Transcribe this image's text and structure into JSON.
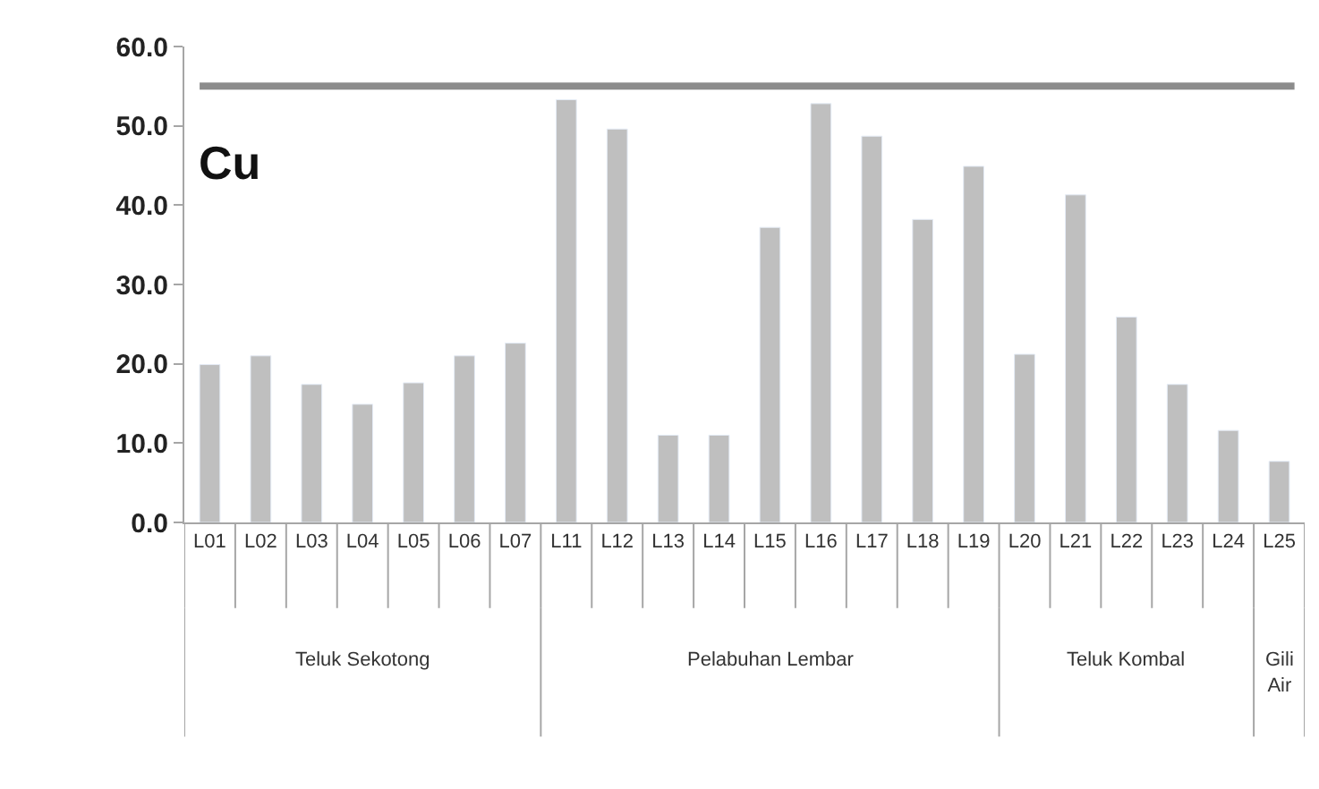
{
  "chart_data": {
    "type": "bar",
    "categories": [
      "L01",
      "L02",
      "L03",
      "L04",
      "L05",
      "L06",
      "L07",
      "L11",
      "L12",
      "L13",
      "L14",
      "L15",
      "L16",
      "L17",
      "L18",
      "L19",
      "L20",
      "L21",
      "L22",
      "L23",
      "L24",
      "L25"
    ],
    "values": [
      19.9,
      21.0,
      17.4,
      14.9,
      17.6,
      21.0,
      22.6,
      53.3,
      49.6,
      11.0,
      11.0,
      37.2,
      52.8,
      48.7,
      38.2,
      44.9,
      21.2,
      41.3,
      25.9,
      17.4,
      11.6,
      7.7
    ],
    "color": "#bfbfbf",
    "ylim": [
      0,
      60
    ],
    "yticks": [
      {
        "value": 0,
        "label": "0.0"
      },
      {
        "value": 10,
        "label": "10.0"
      },
      {
        "value": 20,
        "label": "20.0"
      },
      {
        "value": 30,
        "label": "30.0"
      },
      {
        "value": 40,
        "label": "40.0"
      },
      {
        "value": 50,
        "label": "50.0"
      },
      {
        "value": 60,
        "label": "60.0"
      }
    ],
    "ref_lines": [
      {
        "axis": "y",
        "value": 55,
        "label": null,
        "color": "#8c8c8c"
      }
    ],
    "annotations": [
      "Cu",
      "Teluk Sekotong",
      "Pelabuhan Lembar",
      "Teluk Kombal",
      "Gili Air"
    ]
  }
}
